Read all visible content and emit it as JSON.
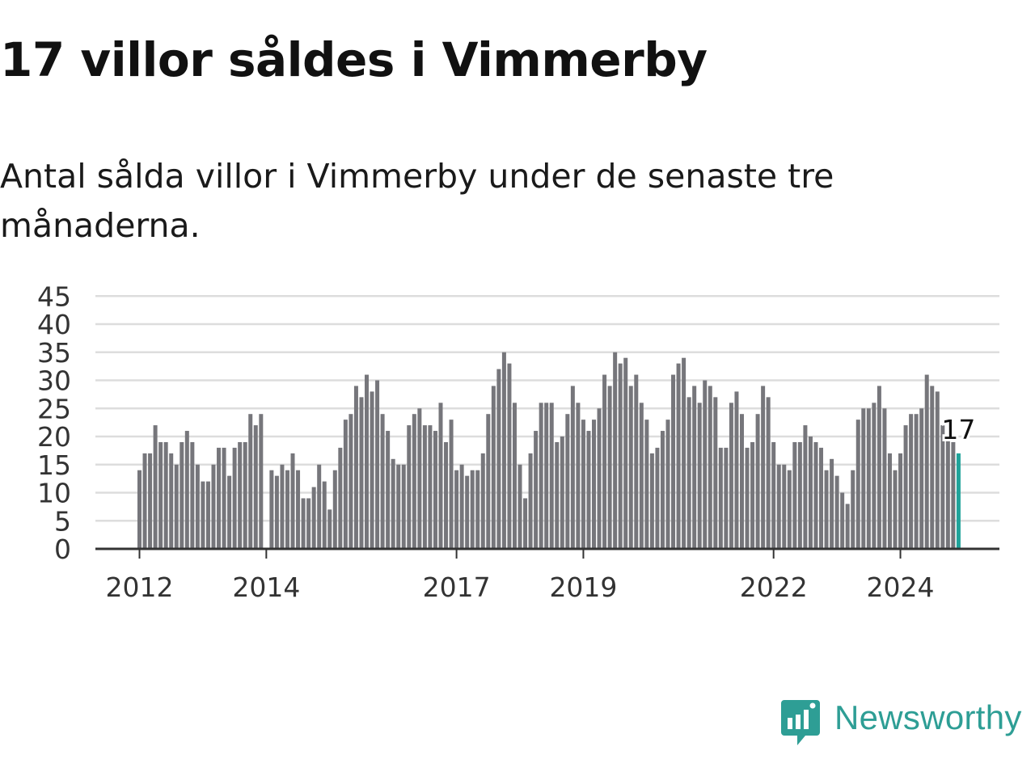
{
  "header": {
    "title": "17 villor såldes i Vimmerby",
    "subtitle": "Antal sålda villor i Vimmerby under de senaste tre månaderna."
  },
  "brand": {
    "name": "Newsworthy",
    "icon": "newsworthy-logo-icon",
    "color": "#2e9e95"
  },
  "colors": {
    "bar": "#76767b",
    "highlight": "#20a39a",
    "grid": "#dddddd",
    "axis": "#333333"
  },
  "chart_data": {
    "type": "bar",
    "title": "",
    "xlabel": "",
    "ylabel": "",
    "ylim": [
      0,
      45
    ],
    "yticks": [
      "0",
      "5",
      "10",
      "15",
      "20",
      "25",
      "30",
      "35",
      "40",
      "45"
    ],
    "xtick_labels": [
      "2012",
      "2014",
      "2017",
      "2019",
      "2022",
      "2024"
    ],
    "x_start": "2012-01",
    "values": [
      14,
      17,
      17,
      22,
      19,
      19,
      17,
      15,
      19,
      21,
      19,
      15,
      12,
      12,
      15,
      18,
      18,
      13,
      18,
      19,
      19,
      24,
      22,
      24,
      null,
      14,
      13,
      15,
      14,
      17,
      14,
      9,
      9,
      11,
      15,
      12,
      7,
      14,
      18,
      23,
      24,
      29,
      27,
      31,
      28,
      30,
      24,
      21,
      16,
      15,
      15,
      22,
      24,
      25,
      22,
      22,
      21,
      26,
      19,
      23,
      14,
      15,
      13,
      14,
      14,
      17,
      24,
      29,
      32,
      35,
      33,
      26,
      15,
      9,
      17,
      21,
      26,
      26,
      26,
      19,
      20,
      24,
      29,
      26,
      23,
      21,
      23,
      25,
      31,
      29,
      35,
      33,
      34,
      29,
      31,
      26,
      23,
      17,
      18,
      21,
      23,
      31,
      33,
      34,
      27,
      29,
      26,
      30,
      29,
      27,
      18,
      18,
      26,
      28,
      24,
      18,
      19,
      24,
      29,
      27,
      19,
      15,
      15,
      14,
      19,
      19,
      22,
      20,
      19,
      18,
      14,
      16,
      13,
      10,
      8,
      14,
      23,
      25,
      25,
      26,
      29,
      25,
      17,
      14,
      17,
      22,
      24,
      24,
      25,
      31,
      29,
      28,
      22,
      20,
      19,
      17
    ],
    "highlight_label": "17",
    "grid": true,
    "legend": "none"
  }
}
